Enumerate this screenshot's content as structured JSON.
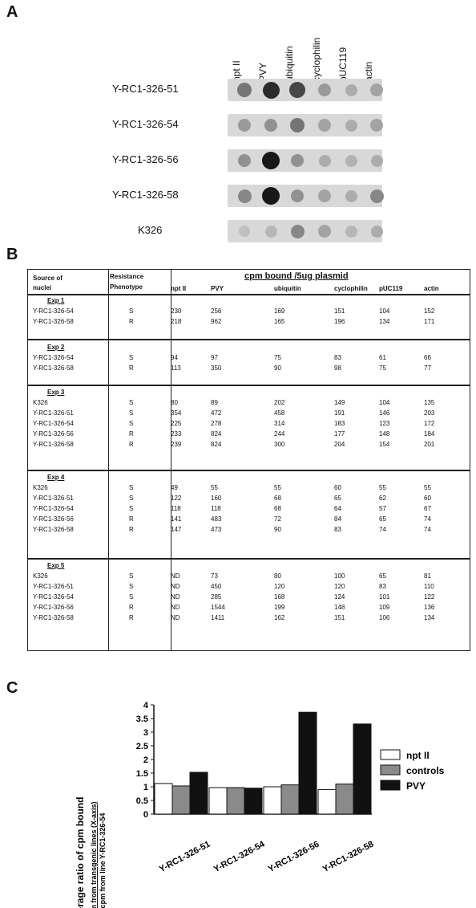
{
  "panel_a": {
    "letter": "A",
    "columns": [
      "npt II",
      "PVY",
      "ubiquitin",
      "cyclophilin",
      "pUC119",
      "actin"
    ],
    "rows": [
      "Y-RC1-326-51",
      "Y-RC1-326-54",
      "Y-RC1-326-56",
      "Y-RC1-326-58",
      "K326"
    ]
  },
  "panel_b": {
    "letter": "B",
    "header": {
      "source": [
        "Source of",
        "nuclei"
      ],
      "resistance": [
        "Resistance",
        "Phenotype"
      ],
      "cpm_title": "cpm bound /5ug plasmid",
      "columns": [
        "npt II",
        "PVY",
        "ubiquitin",
        "cyclophilin",
        "pUC119",
        "actin"
      ]
    },
    "experiments": [
      {
        "label": "Exp 1",
        "rows": [
          [
            "Y-RC1-326-54",
            "S",
            "230",
            "256",
            "169",
            "151",
            "104",
            "152"
          ],
          [
            "Y-RC1-326-58",
            "R",
            "218",
            "962",
            "165",
            "196",
            "134",
            "171"
          ]
        ]
      },
      {
        "label": "Exp 2",
        "rows": [
          [
            "Y-RC1-326-54",
            "S",
            "94",
            "97",
            "75",
            "83",
            "61",
            "66"
          ],
          [
            "Y-RC1-326-58",
            "R",
            "113",
            "350",
            "90",
            "98",
            "75",
            "77"
          ]
        ]
      },
      {
        "label": "Exp 3",
        "rows": [
          [
            "K326",
            "S",
            "80",
            "89",
            "202",
            "149",
            "104",
            "135"
          ],
          [
            "Y-RC1-326-51",
            "S",
            "354",
            "472",
            "458",
            "191",
            "146",
            "203"
          ],
          [
            "Y-RC1-326-54",
            "S",
            "225",
            "278",
            "314",
            "183",
            "123",
            "172"
          ],
          [
            "Y-RC1-326-56",
            "R",
            "233",
            "824",
            "244",
            "177",
            "148",
            "184"
          ],
          [
            "Y-RC1-326-58",
            "R",
            "239",
            "824",
            "300",
            "204",
            "154",
            "201"
          ]
        ]
      },
      {
        "label": "Exp 4",
        "rows": [
          [
            "K326",
            "S",
            "49",
            "55",
            "55",
            "60",
            "55",
            "55"
          ],
          [
            "Y-RC1-326-51",
            "S",
            "122",
            "160",
            "68",
            "65",
            "62",
            "60"
          ],
          [
            "Y-RC1-326-54",
            "S",
            "118",
            "118",
            "68",
            "64",
            "57",
            "67"
          ],
          [
            "Y-RC1-326-56",
            "R",
            "141",
            "483",
            "72",
            "84",
            "65",
            "74"
          ],
          [
            "Y-RC1-326-58",
            "R",
            "147",
            "473",
            "90",
            "83",
            "74",
            "74"
          ]
        ]
      },
      {
        "label": "Exp 5",
        "rows": [
          [
            "K326",
            "S",
            "ND",
            "73",
            "80",
            "100",
            "65",
            "81"
          ],
          [
            "Y-RC1-326-51",
            "S",
            "ND",
            "450",
            "120",
            "120",
            "83",
            "110"
          ],
          [
            "Y-RC1-326-54",
            "S",
            "ND",
            "285",
            "168",
            "124",
            "101",
            "122"
          ],
          [
            "Y-RC1-326-56",
            "R",
            "ND",
            "1544",
            "199",
            "148",
            "109",
            "136"
          ],
          [
            "Y-RC1-326-58",
            "R",
            "ND",
            "1411",
            "162",
            "151",
            "106",
            "134"
          ]
        ]
      }
    ]
  },
  "panel_c": {
    "letter": "C",
    "ylabel_main": "Average ratio of cpm bound",
    "ylabel_sub1": "cpm from transgenic lines (X-axis)",
    "ylabel_sub2": "cpm from line Y-RC1-326-54",
    "colors": {
      "npt II": "#ffffff",
      "controls": "#8a8a8a",
      "PVY": "#111111"
    }
  },
  "chart_data": {
    "type": "bar",
    "categories": [
      "Y-RC1-326-51",
      "Y-RC1-326-54",
      "Y-RC1-326-56",
      "Y-RC1-326-58"
    ],
    "series": [
      {
        "name": "npt II",
        "values": [
          1.12,
          0.97,
          1.0,
          0.9
        ]
      },
      {
        "name": "controls",
        "values": [
          1.03,
          0.97,
          1.07,
          1.1
        ]
      },
      {
        "name": "PVY",
        "values": [
          1.53,
          0.95,
          3.73,
          3.3
        ]
      }
    ],
    "ylim": [
      0,
      4
    ],
    "yticks": [
      "0",
      "0.5",
      "1",
      "1.5",
      "2",
      "2.5",
      "3",
      "3.5",
      "4"
    ],
    "legend": "right",
    "grid": false
  }
}
